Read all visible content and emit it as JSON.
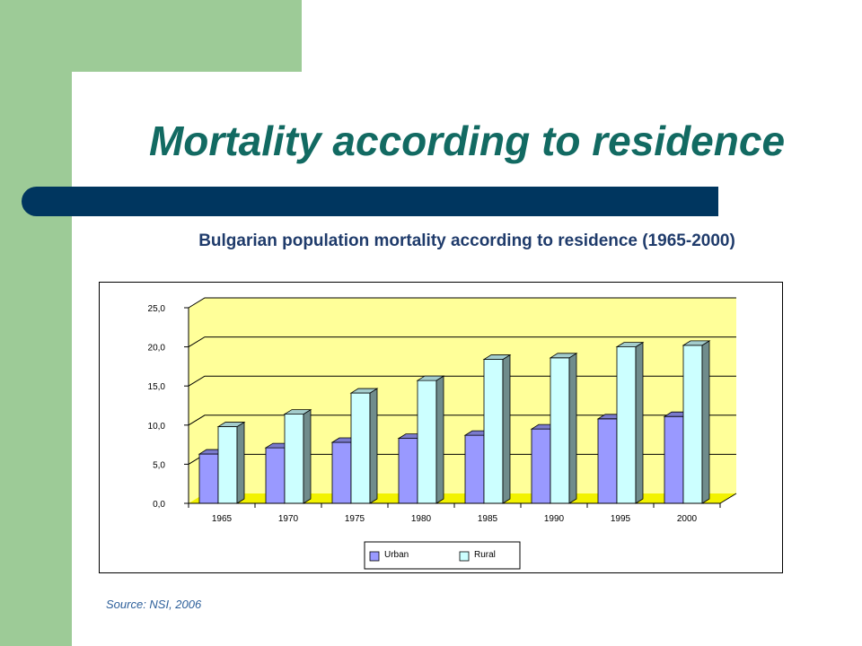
{
  "slide": {
    "title": "Mortality according to residence",
    "subtitle": "Bulgarian population mortality according to residence (1965-2000)",
    "source": "Source: NSI, 2006"
  },
  "colors": {
    "background_green": "#9dcb97",
    "title": "#126a62",
    "rule_bar": "#00365f",
    "subtitle": "#1f3b6b",
    "source": "#2d5f9a",
    "plot_wall": "#ffff99",
    "urban": "#9999ff",
    "rural": "#ccffff"
  },
  "chart_data": {
    "type": "bar",
    "categories": [
      "1965",
      "1970",
      "1975",
      "1980",
      "1985",
      "1990",
      "1995",
      "2000"
    ],
    "series": [
      {
        "name": "Urban",
        "values": [
          6.3,
          7.1,
          7.8,
          8.3,
          8.7,
          9.5,
          10.8,
          11.1
        ]
      },
      {
        "name": "Rural",
        "values": [
          9.8,
          11.4,
          14.1,
          15.7,
          18.4,
          18.6,
          20.0,
          20.2
        ]
      }
    ],
    "y_ticks": [
      "0,0",
      "5,0",
      "10,0",
      "15,0",
      "20,0",
      "25,0"
    ],
    "ylim": [
      0,
      25
    ],
    "grid": true,
    "legend_position": "bottom",
    "style": "3d-clustered-column"
  }
}
